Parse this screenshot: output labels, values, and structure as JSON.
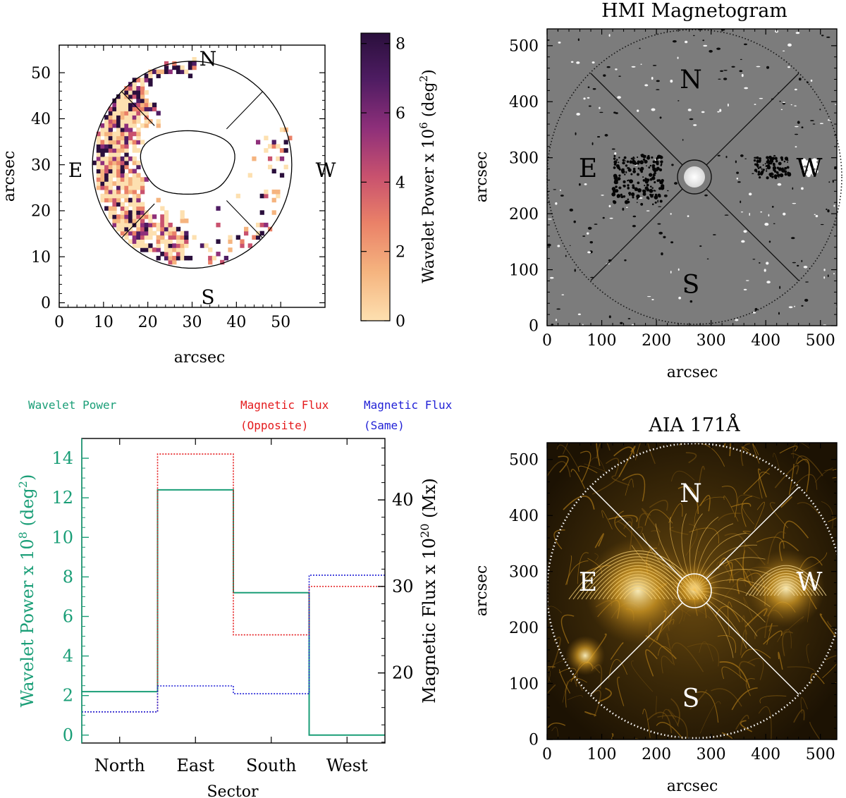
{
  "colors": {
    "wavelet": "#1a9e77",
    "opposite": "#e41a1c",
    "same": "#1f1fd6",
    "axis": "#000000"
  },
  "chart_data": [
    {
      "type": "heatmap",
      "panel": "wavelet-map",
      "xlabel": "arcsec",
      "ylabel": "arcsec",
      "xlim": [
        0,
        60
      ],
      "ylim": [
        -1,
        56
      ],
      "xticks": [
        0,
        10,
        20,
        30,
        40,
        50
      ],
      "yticks": [
        0,
        10,
        20,
        30,
        40,
        50
      ],
      "directions": {
        "n": "N",
        "s": "S",
        "e": "E",
        "w": "W"
      },
      "colorbar": {
        "label": "Wavelet Power x 10",
        "label_exp": "6",
        "label_unit": " (deg",
        "label_unit_exp": "2",
        "label_close": ")",
        "range": [
          0,
          8.3
        ],
        "ticks": [
          0,
          2,
          4,
          6,
          8
        ],
        "scale": [
          "#fde0b0",
          "#f5b47f",
          "#ea8168",
          "#c9526e",
          "#8e2f7a",
          "#4e1c62",
          "#2a0f3c"
        ]
      },
      "center": [
        30,
        30
      ],
      "outer_radius": 22.5,
      "inner_radius_x": 10.5,
      "inner_radius_y": 7.5
    },
    {
      "type": "image",
      "panel": "hmi",
      "title": "HMI Magnetogram",
      "xlabel": "arcsec",
      "ylabel": "arcsec",
      "xlim": [
        0,
        530
      ],
      "ylim": [
        0,
        530
      ],
      "xticks": [
        0,
        100,
        200,
        300,
        400,
        500
      ],
      "yticks": [
        0,
        100,
        200,
        300,
        400,
        500
      ],
      "directions": {
        "n": "N",
        "s": "S",
        "e": "E",
        "w": "W"
      }
    },
    {
      "type": "line",
      "panel": "sector-histogram",
      "xlabel": "Sector",
      "categories": [
        "North",
        "East",
        "South",
        "West"
      ],
      "legend": {
        "wavelet": "Wavelet Power",
        "opposite_1": "Magnetic Flux",
        "opposite_2": "(Opposite)",
        "same_1": "Magnetic Flux",
        "same_2": "(Same)"
      },
      "left_axis": {
        "label": "Wavelet Power x 10",
        "label_exp": "8",
        "label_unit": " (deg",
        "label_unit_exp": "2",
        "label_close": ")",
        "range": [
          -0.4,
          15
        ],
        "ticks": [
          0,
          2,
          4,
          6,
          8,
          10,
          12,
          14
        ]
      },
      "right_axis": {
        "label": "Magnetic Flux x 10",
        "label_exp": "20",
        "label_unit": " (Mx)",
        "range": [
          11.9,
          47.1
        ],
        "ticks": [
          20,
          30,
          40
        ]
      },
      "series": [
        {
          "name": "Wavelet Power",
          "axis": "left",
          "values": [
            2.2,
            12.4,
            7.2,
            0.0
          ]
        },
        {
          "name": "Magnetic Flux (Opposite)",
          "axis": "right",
          "values": [
            15.5,
            45.3,
            24.4,
            30.0
          ]
        },
        {
          "name": "Magnetic Flux (Same)",
          "axis": "right",
          "values": [
            15.5,
            18.5,
            17.6,
            31.3
          ]
        }
      ]
    },
    {
      "type": "image",
      "panel": "aia",
      "title": "AIA 171Å",
      "xlabel": "arcsec",
      "ylabel": "arcsec",
      "xlim": [
        0,
        530
      ],
      "ylim": [
        0,
        530
      ],
      "xticks": [
        0,
        100,
        200,
        300,
        400,
        500
      ],
      "yticks": [
        0,
        100,
        200,
        300,
        400,
        500
      ],
      "directions": {
        "n": "N",
        "s": "S",
        "e": "E",
        "w": "W"
      }
    }
  ]
}
